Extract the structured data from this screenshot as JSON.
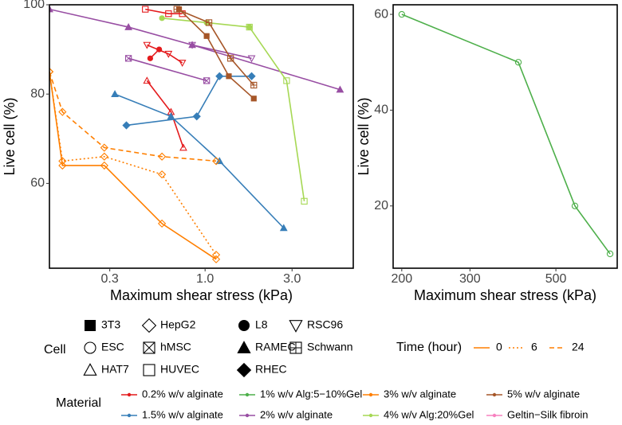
{
  "chart_data": [
    {
      "type": "line",
      "name": "left-panel",
      "xlabel": "Maximum shear stress (kPa)",
      "ylabel": "Live cell (%)",
      "x_scale": "log10",
      "xlim": [
        0.14,
        6.5
      ],
      "ylim": [
        41,
        100
      ],
      "x_ticks": [
        0.3,
        1.0,
        3.0
      ],
      "x_tick_labels": [
        "0.3",
        "1.0",
        "3.0"
      ],
      "y_ticks": [
        60,
        80,
        100
      ],
      "y_tick_labels": [
        "60",
        "80",
        "100"
      ],
      "series": [
        {
          "id": "alg02-l8",
          "material": "0.2% w/v alginate",
          "cell": "L8",
          "time": 0,
          "points": [
            [
              0.5,
              88
            ],
            [
              0.56,
              90
            ]
          ]
        },
        {
          "id": "alg02-hat7",
          "material": "0.2% w/v alginate",
          "cell": "HAT7",
          "time": 0,
          "points": [
            [
              0.48,
              83
            ],
            [
              0.65,
              76
            ],
            [
              0.76,
              68
            ]
          ]
        },
        {
          "id": "alg02-rsc96",
          "material": "0.2% w/v alginate",
          "cell": "RSC96",
          "time": 0,
          "points": [
            [
              0.48,
              91
            ],
            [
              0.63,
              89
            ],
            [
              0.75,
              87
            ]
          ]
        },
        {
          "id": "alg02-huvec",
          "material": "0.2% w/v alginate",
          "cell": "HUVEC",
          "time": 0,
          "points": [
            [
              0.47,
              99
            ],
            [
              0.63,
              98
            ],
            [
              0.75,
              98
            ]
          ]
        },
        {
          "id": "alg15-ramec",
          "material": "1.5% w/v alginate",
          "cell": "RAMEC",
          "time": 0,
          "points": [
            [
              0.32,
              80
            ],
            [
              0.65,
              75
            ],
            [
              1.2,
              65
            ],
            [
              2.7,
              50
            ]
          ]
        },
        {
          "id": "alg15-rhec",
          "material": "1.5% w/v alginate",
          "cell": "RHEC",
          "time": 0,
          "points": [
            [
              0.37,
              73
            ],
            [
              0.9,
              75
            ],
            [
              1.2,
              84
            ],
            [
              1.8,
              84
            ]
          ]
        },
        {
          "id": "alg2-main",
          "material": "2% w/v alginate",
          "cell": "RAMEC",
          "time": 0,
          "points": [
            [
              0.14,
              99
            ],
            [
              0.38,
              95
            ],
            [
              0.85,
              91
            ],
            [
              5.5,
              81
            ]
          ]
        },
        {
          "id": "alg2-hmsc",
          "material": "2% w/v alginate",
          "cell": "hMSC",
          "time": 0,
          "points": [
            [
              0.38,
              88
            ],
            [
              1.02,
              83
            ]
          ]
        },
        {
          "id": "alg2-rsc96",
          "material": "2% w/v alginate",
          "cell": "RSC96",
          "time": 0,
          "points": [
            [
              0.85,
              91
            ],
            [
              1.8,
              88
            ]
          ]
        },
        {
          "id": "alg3-t0",
          "material": "3% w/v alginate",
          "cell": "HepG2",
          "time": 0,
          "points": [
            [
              0.14,
              85
            ],
            [
              0.165,
              64
            ],
            [
              0.28,
              64
            ],
            [
              0.58,
              51
            ],
            [
              1.15,
              43
            ]
          ]
        },
        {
          "id": "alg3-t6",
          "material": "3% w/v alginate",
          "cell": "HepG2",
          "time": 6,
          "points": [
            [
              0.14,
              85
            ],
            [
              0.165,
              65
            ],
            [
              0.28,
              66
            ],
            [
              0.58,
              62
            ],
            [
              1.15,
              44
            ]
          ]
        },
        {
          "id": "alg3-t24",
          "material": "3% w/v alginate",
          "cell": "HepG2",
          "time": 24,
          "points": [
            [
              0.14,
              85
            ],
            [
              0.165,
              76
            ],
            [
              0.28,
              68
            ],
            [
              0.58,
              66
            ],
            [
              1.15,
              65
            ]
          ]
        },
        {
          "id": "alg4-l8",
          "material": "4% w/v Alg:20%Gel",
          "cell": "L8",
          "time": 0,
          "points": [
            [
              0.58,
              97
            ],
            [
              1.02,
              96
            ],
            [
              1.75,
              95
            ]
          ]
        },
        {
          "id": "alg4-huvec",
          "material": "4% w/v Alg:20%Gel",
          "cell": "HUVEC",
          "time": 0,
          "points": [
            [
              1.75,
              95
            ],
            [
              2.8,
              83
            ],
            [
              3.5,
              56
            ]
          ]
        },
        {
          "id": "alg5-3t3",
          "material": "5% w/v alginate",
          "cell": "3T3",
          "time": 0,
          "points": [
            [
              0.72,
              99
            ],
            [
              1.02,
              93
            ],
            [
              1.35,
              84
            ],
            [
              1.85,
              79
            ]
          ]
        },
        {
          "id": "alg5-schwann",
          "material": "5% w/v alginate",
          "cell": "Schwann",
          "time": 0,
          "points": [
            [
              0.7,
              99
            ],
            [
              1.05,
              96
            ],
            [
              1.38,
              88
            ],
            [
              1.85,
              82
            ]
          ]
        }
      ]
    },
    {
      "type": "line",
      "name": "right-panel",
      "xlabel": "Maximum shear stress (kPa)",
      "ylabel": "Live cell (%)",
      "x_scale": "log10",
      "xlim": [
        190,
        720
      ],
      "ylim": [
        7,
        62
      ],
      "x_ticks": [
        200,
        300,
        500
      ],
      "x_tick_labels": [
        "200",
        "300",
        "500"
      ],
      "y_ticks": [
        20,
        40,
        60
      ],
      "y_tick_labels": [
        "20",
        "40",
        "60"
      ],
      "series": [
        {
          "id": "alg1-esc",
          "material": "1% w/v Alg:5−10%Gel",
          "cell": "ESC",
          "time": 0,
          "points": [
            [
              200,
              60
            ],
            [
              400,
              50
            ],
            [
              560,
              20
            ],
            [
              690,
              10
            ]
          ]
        }
      ]
    }
  ],
  "legend": {
    "cell": {
      "title": "Cell",
      "items": [
        {
          "label": "3T3",
          "shape": "square-filled"
        },
        {
          "label": "ESC",
          "shape": "circle-open"
        },
        {
          "label": "HAT7",
          "shape": "triangle-open"
        },
        {
          "label": "HepG2",
          "shape": "diamond-open"
        },
        {
          "label": "hMSC",
          "shape": "square-cross"
        },
        {
          "label": "HUVEC",
          "shape": "square-open"
        },
        {
          "label": "L8",
          "shape": "circle-filled"
        },
        {
          "label": "RAMEC",
          "shape": "triangle-filled"
        },
        {
          "label": "RHEC",
          "shape": "diamond-filled"
        },
        {
          "label": "RSC96",
          "shape": "triangle-down-open"
        },
        {
          "label": "Schwann",
          "shape": "square-plus"
        }
      ]
    },
    "time": {
      "title": "Time (hour)",
      "items": [
        {
          "label": "0",
          "dash": "solid"
        },
        {
          "label": "6",
          "dash": "dotted"
        },
        {
          "label": "24",
          "dash": "dashed"
        }
      ]
    },
    "material": {
      "title": "Material",
      "items": [
        {
          "label": "0.2% w/v alginate",
          "color": "#e41a1c"
        },
        {
          "label": "1.5% w/v alginate",
          "color": "#377eb8"
        },
        {
          "label": "1% w/v Alg:5−10%Gel",
          "color": "#4daf4a"
        },
        {
          "label": "2% w/v alginate",
          "color": "#984ea3"
        },
        {
          "label": "3% w/v alginate",
          "color": "#ff7f00"
        },
        {
          "label": "4% w/v Alg:20%Gel",
          "color": "#a6d854"
        },
        {
          "label": "5% w/v alginate",
          "color": "#a65628"
        },
        {
          "label": "Geltin−Silk fibroin",
          "color": "#f781bf"
        }
      ]
    }
  }
}
